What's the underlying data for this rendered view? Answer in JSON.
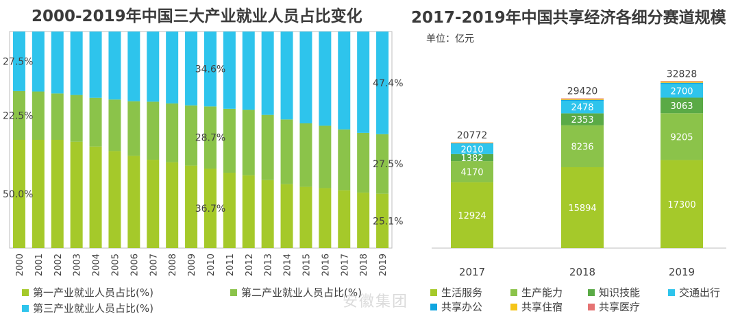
{
  "left_title": "2000-2019年中国三大产业就业人员占比变化",
  "right_title": "2017-2019年中国共享经济各细分赛道规模",
  "right_unit": "单位：亿元",
  "watermark": "安徽集团",
  "chart_data": [
    {
      "type": "bar",
      "stacked": true,
      "percent": true,
      "title": "2000-2019年中国三大产业就业人员占比变化",
      "categories": [
        "2000",
        "2001",
        "2002",
        "2003",
        "2004",
        "2005",
        "2006",
        "2007",
        "2008",
        "2009",
        "2010",
        "2011",
        "2012",
        "2013",
        "2014",
        "2015",
        "2016",
        "2017",
        "2018",
        "2019"
      ],
      "series": [
        {
          "name": "第一产业就业人员占比(%)",
          "color": "#a5c92a",
          "values": [
            50.0,
            50.0,
            50.0,
            49.1,
            46.9,
            44.8,
            42.6,
            40.8,
            39.6,
            38.1,
            36.7,
            34.8,
            33.6,
            31.4,
            29.5,
            28.3,
            27.7,
            26.7,
            25.6,
            25.1
          ]
        },
        {
          "name": "第二产业就业人员占比(%)",
          "color": "#8bc34a",
          "values": [
            22.5,
            22.3,
            21.4,
            21.6,
            22.5,
            23.8,
            25.2,
            26.8,
            27.2,
            27.8,
            28.7,
            29.5,
            30.3,
            30.1,
            29.9,
            29.3,
            28.8,
            28.1,
            27.6,
            27.5
          ]
        },
        {
          "name": "第三产业就业人员占比(%)",
          "color": "#2ec4ec",
          "values": [
            27.5,
            27.7,
            28.6,
            29.3,
            30.6,
            31.4,
            32.2,
            32.4,
            33.2,
            34.1,
            34.6,
            35.7,
            36.1,
            38.5,
            40.6,
            42.4,
            43.5,
            45.2,
            46.8,
            47.4
          ]
        }
      ],
      "labels": [
        {
          "year": "2000",
          "series": 0,
          "text": "50.0%"
        },
        {
          "year": "2000",
          "series": 1,
          "text": "22.5%"
        },
        {
          "year": "2000",
          "series": 2,
          "text": "27.5%"
        },
        {
          "year": "2010",
          "series": 0,
          "text": "36.7%"
        },
        {
          "year": "2010",
          "series": 1,
          "text": "28.7%"
        },
        {
          "year": "2010",
          "series": 2,
          "text": "34.6%"
        },
        {
          "year": "2019",
          "series": 0,
          "text": "25.1%"
        },
        {
          "year": "2019",
          "series": 1,
          "text": "27.5%"
        },
        {
          "year": "2019",
          "series": 2,
          "text": "47.4%"
        }
      ],
      "legend_position": "bottom"
    },
    {
      "type": "bar",
      "stacked": true,
      "title": "2017-2019年中国共享经济各细分赛道规模",
      "unit": "单位：亿元",
      "categories": [
        "2017",
        "2018",
        "2019"
      ],
      "totals": [
        20772,
        29420,
        32828
      ],
      "series": [
        {
          "name": "生活服务",
          "color": "#a5c92a",
          "values": [
            12924,
            15894,
            17300
          ]
        },
        {
          "name": "生产能力",
          "color": "#8bc34a",
          "values": [
            4170,
            8236,
            9205
          ]
        },
        {
          "name": "知识技能",
          "color": "#5aaa46",
          "values": [
            1382,
            2353,
            3063
          ]
        },
        {
          "name": "交通出行",
          "color": "#2ec4ec",
          "values": [
            2010,
            2478,
            2700
          ]
        },
        {
          "name": "共享办公",
          "color": "#0fa5e0",
          "values": [
            110,
            168,
            227
          ]
        },
        {
          "name": "共享住宿",
          "color": "#f5c518",
          "values": [
            120,
            165,
            225
          ]
        },
        {
          "name": "共享医疗",
          "color": "#e57373",
          "values": [
            56,
            126,
            108
          ]
        }
      ],
      "labeled_series": [
        "生活服务",
        "生产能力",
        "知识技能",
        "交通出行"
      ],
      "legend_position": "bottom"
    }
  ]
}
